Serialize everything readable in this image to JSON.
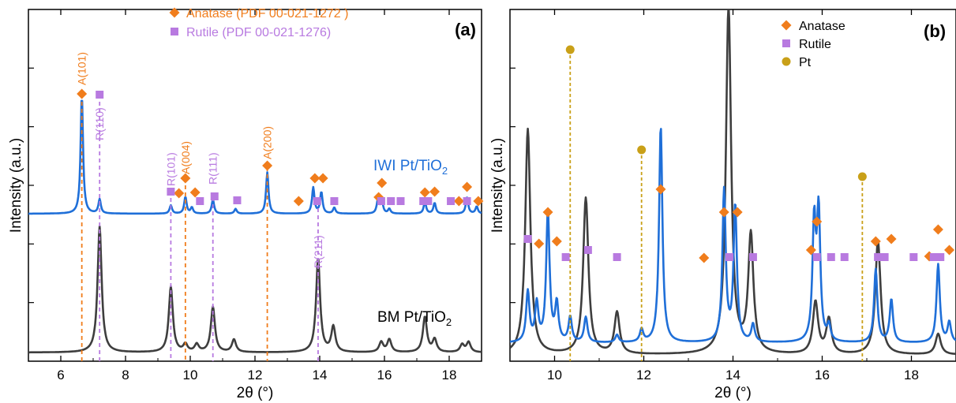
{
  "colors": {
    "anatase": "#f07d1c",
    "rutile": "#b87ae0",
    "pt": "#c9a018",
    "iwi": "#1f6fd8",
    "bm": "#3e3e3e"
  },
  "chart_data": [
    {
      "type": "line",
      "panel_label": "(a)",
      "xlabel": "2θ (°)",
      "ylabel": "Intensity (a.u.)",
      "xlim": [
        5,
        19
      ],
      "xticks": [
        6,
        8,
        10,
        12,
        14,
        16,
        18
      ],
      "legend": {
        "position": "top-center",
        "entries": [
          {
            "label": "Anatase (PDF 00-021-1272 )",
            "marker": "diamond",
            "color": "#f07d1c"
          },
          {
            "label": "Rutile (PDF 00-021-1276)",
            "marker": "square",
            "color": "#b87ae0"
          }
        ]
      },
      "series": [
        {
          "name": "IWI Pt/TiO",
          "name_sub": "2",
          "color": "#1f6fd8",
          "peaks": [
            [
              6.65,
              1.0
            ],
            [
              7.2,
              0.12
            ],
            [
              9.4,
              0.07
            ],
            [
              9.85,
              0.14
            ],
            [
              10.05,
              0.05
            ],
            [
              10.7,
              0.12
            ],
            [
              11.4,
              0.04
            ],
            [
              12.38,
              0.35
            ],
            [
              13.8,
              0.22
            ],
            [
              14.05,
              0.18
            ],
            [
              14.45,
              0.05
            ],
            [
              15.8,
              0.12
            ],
            [
              15.92,
              0.1
            ],
            [
              16.15,
              0.04
            ],
            [
              17.25,
              0.1
            ],
            [
              17.55,
              0.09
            ],
            [
              18.55,
              0.14
            ],
            [
              18.85,
              0.06
            ]
          ]
        },
        {
          "name": "BM Pt/TiO",
          "name_sub": "2",
          "color": "#3e3e3e",
          "peaks": [
            [
              7.2,
              1.0
            ],
            [
              9.4,
              0.52
            ],
            [
              9.85,
              0.06
            ],
            [
              10.2,
              0.06
            ],
            [
              10.7,
              0.36
            ],
            [
              11.35,
              0.1
            ],
            [
              13.95,
              0.74
            ],
            [
              14.42,
              0.2
            ],
            [
              15.9,
              0.08
            ],
            [
              16.15,
              0.1
            ],
            [
              17.25,
              0.28
            ],
            [
              17.55,
              0.1
            ],
            [
              18.4,
              0.06
            ],
            [
              18.6,
              0.08
            ]
          ]
        }
      ],
      "annotations": [
        {
          "text": "A(101)",
          "x": 6.65,
          "phase": "anatase"
        },
        {
          "text": "R(110)",
          "x": 7.2,
          "phase": "rutile"
        },
        {
          "text": "R(101)",
          "x": 9.4,
          "phase": "rutile"
        },
        {
          "text": "A(004)",
          "x": 9.85,
          "phase": "anatase"
        },
        {
          "text": "R(111)",
          "x": 10.7,
          "phase": "rutile"
        },
        {
          "text": "A(200)",
          "x": 12.38,
          "phase": "anatase"
        },
        {
          "text": "R(211)",
          "x": 13.95,
          "phase": "rutile"
        }
      ],
      "anatase_markers": [
        6.65,
        9.65,
        9.85,
        10.15,
        12.38,
        13.35,
        13.85,
        14.1,
        15.82,
        15.92,
        17.25,
        17.55,
        18.3,
        18.55,
        18.9
      ],
      "rutile_markers": [
        7.2,
        9.4,
        10.3,
        10.75,
        11.45,
        13.92,
        14.45,
        15.9,
        16.2,
        16.5,
        17.2,
        17.35,
        18.05,
        18.55
      ]
    },
    {
      "type": "line",
      "panel_label": "(b)",
      "xlabel": "2θ (°)",
      "ylabel": "Intensity (a.u.)",
      "xlim": [
        9,
        19
      ],
      "xticks": [
        10,
        12,
        14,
        16,
        18
      ],
      "legend": {
        "position": "top-right",
        "entries": [
          {
            "label": "Anatase",
            "marker": "diamond",
            "color": "#f07d1c"
          },
          {
            "label": "Rutile",
            "marker": "square",
            "color": "#b87ae0"
          },
          {
            "label": "Pt",
            "marker": "circle",
            "color": "#c9a018"
          }
        ]
      },
      "series": [
        {
          "color": "#1f6fd8",
          "peaks": [
            [
              9.4,
              0.2
            ],
            [
              9.6,
              0.15
            ],
            [
              9.85,
              0.52
            ],
            [
              10.05,
              0.15
            ],
            [
              10.35,
              0.1
            ],
            [
              10.7,
              0.1
            ],
            [
              11.4,
              0.03
            ],
            [
              11.95,
              0.05
            ],
            [
              12.38,
              0.86
            ],
            [
              13.8,
              0.6
            ],
            [
              14.05,
              0.54
            ],
            [
              14.45,
              0.07
            ],
            [
              15.82,
              0.46
            ],
            [
              15.92,
              0.5
            ],
            [
              16.15,
              0.06
            ],
            [
              17.2,
              0.29
            ],
            [
              17.55,
              0.17
            ],
            [
              18.6,
              0.31
            ],
            [
              18.85,
              0.08
            ]
          ]
        },
        {
          "color": "#3e3e3e",
          "peaks": [
            [
              9.4,
              0.65
            ],
            [
              10.7,
              0.45
            ],
            [
              11.4,
              0.12
            ],
            [
              13.9,
              1.0
            ],
            [
              14.4,
              0.34
            ],
            [
              15.85,
              0.15
            ],
            [
              16.15,
              0.1
            ],
            [
              17.25,
              0.33
            ],
            [
              18.6,
              0.06
            ]
          ]
        }
      ],
      "anatase_markers": [
        9.65,
        9.85,
        10.05,
        12.38,
        13.35,
        13.8,
        14.1,
        15.75,
        15.88,
        17.2,
        17.55,
        18.4,
        18.6,
        18.85
      ],
      "rutile_markers": [
        9.4,
        10.25,
        10.75,
        11.4,
        13.92,
        14.45,
        15.88,
        16.2,
        16.5,
        17.25,
        17.4,
        18.05,
        18.5,
        18.65
      ],
      "pt_markers": [
        10.35,
        11.95,
        16.9
      ]
    }
  ]
}
